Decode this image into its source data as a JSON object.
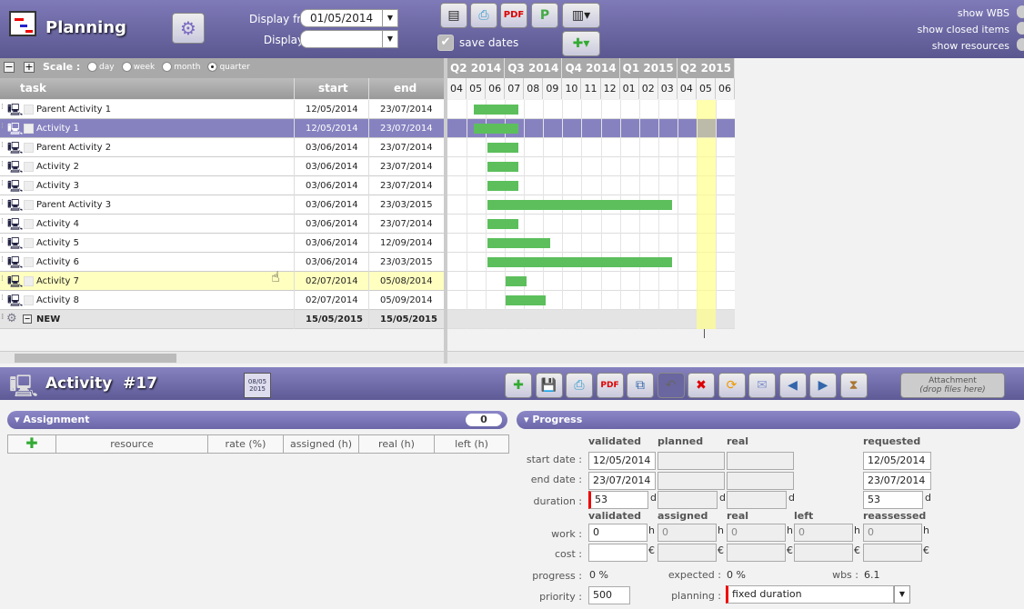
{
  "header": {
    "title": "Planning",
    "display_from_label": "Display from",
    "display_from": "01/05/2014",
    "display_to_label": "Display to",
    "display_to": "",
    "save_dates": "save dates",
    "show_wbs": "show WBS",
    "show_closed": "show closed items",
    "show_resources": "show resources"
  },
  "scale": {
    "label": "Scale :",
    "options": [
      "day",
      "week",
      "month",
      "quarter"
    ],
    "selected": "quarter"
  },
  "columns": {
    "task": "task",
    "start": "start",
    "end": "end"
  },
  "gantt": {
    "quarters": [
      "Q2 2014",
      "Q3 2014",
      "Q4 2014",
      "Q1 2015",
      "Q2 2015"
    ],
    "months": [
      "04",
      "05",
      "06",
      "07",
      "08",
      "09",
      "10",
      "11",
      "12",
      "01",
      "02",
      "03",
      "04",
      "05",
      "06"
    ],
    "today_month_index": 13,
    "bar_color": "#5cbf5c"
  },
  "rows": [
    {
      "task": "Parent Activity 1",
      "start": "12/05/2014",
      "end": "23/07/2014"
    },
    {
      "task": "Activity 1",
      "start": "12/05/2014",
      "end": "23/07/2014",
      "selected": true
    },
    {
      "task": "Parent Activity 2",
      "start": "03/06/2014",
      "end": "23/07/2014"
    },
    {
      "task": "Activity 2",
      "start": "03/06/2014",
      "end": "23/07/2014"
    },
    {
      "task": "Activity 3",
      "start": "03/06/2014",
      "end": "23/07/2014"
    },
    {
      "task": "Parent Activity 3",
      "start": "03/06/2014",
      "end": "23/03/2015"
    },
    {
      "task": "Activity 4",
      "start": "03/06/2014",
      "end": "23/07/2014"
    },
    {
      "task": "Activity 5",
      "start": "03/06/2014",
      "end": "12/09/2014"
    },
    {
      "task": "Activity 6",
      "start": "03/06/2014",
      "end": "23/03/2015"
    },
    {
      "task": "Activity 7",
      "start": "02/07/2014",
      "end": "05/08/2014",
      "hover": true
    },
    {
      "task": "Activity 8",
      "start": "02/07/2014",
      "end": "05/09/2014"
    }
  ],
  "new_row": {
    "task": "NEW",
    "start": "15/05/2015",
    "end": "15/05/2015"
  },
  "detail": {
    "title": "Activity  #17",
    "calendar": "08/05\n2015",
    "attachment": "Attachment",
    "attachment_hint": "(drop files here)"
  },
  "assignment": {
    "title": "Assignment",
    "count": "0",
    "cols": [
      "resource",
      "rate (%)",
      "assigned (h)",
      "real (h)",
      "left (h)"
    ]
  },
  "progress": {
    "title": "Progress",
    "hdr1": [
      "validated",
      "planned",
      "real",
      "requested"
    ],
    "start_label": "start date :",
    "start": [
      "12/05/2014",
      "",
      "",
      "12/05/2014"
    ],
    "end_label": "end date :",
    "end": [
      "23/07/2014",
      "",
      "",
      "23/07/2014"
    ],
    "duration_label": "duration :",
    "duration": [
      "53",
      "",
      "",
      "53"
    ],
    "day_unit": "d",
    "hdr2": [
      "validated",
      "assigned",
      "real",
      "left",
      "reassessed"
    ],
    "work_label": "work :",
    "work": [
      "0",
      "0",
      "0",
      "0",
      "0"
    ],
    "hour_unit": "h",
    "cost_label": "cost :",
    "cost": [
      "",
      "",
      "",
      "",
      ""
    ],
    "currency": "€",
    "progress_label": "progress :",
    "progress": "0 %",
    "expected_label": "expected :",
    "expected": "0 %",
    "wbs_label": "wbs :",
    "wbs": "6.1",
    "priority_label": "priority :",
    "priority": "500",
    "planning_label": "planning :",
    "planning": "fixed duration"
  }
}
